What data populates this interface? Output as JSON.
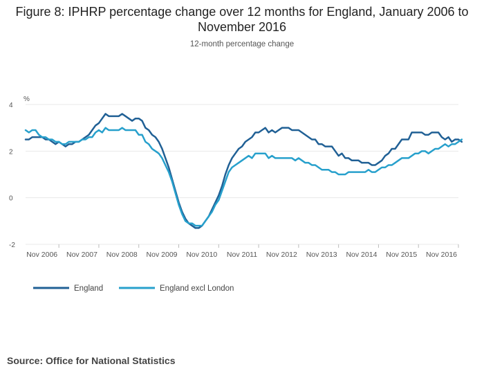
{
  "chart_data": {
    "type": "line",
    "title": "Figure 8: IPHRP percentage change over 12 months for England, January 2006 to November 2016",
    "subtitle": "12-month percentage change",
    "ylabel": "%",
    "xlabel": "",
    "ylim": [
      -2,
      4
    ],
    "yticks": [
      4,
      2,
      0,
      -2
    ],
    "xlim": [
      0,
      130
    ],
    "xticks": [
      {
        "label": "Nov 2006",
        "pos": 10
      },
      {
        "label": "Nov 2007",
        "pos": 22
      },
      {
        "label": "Nov 2008",
        "pos": 34
      },
      {
        "label": "Nov 2009",
        "pos": 46
      },
      {
        "label": "Nov 2010",
        "pos": 58
      },
      {
        "label": "Nov 2011",
        "pos": 70
      },
      {
        "label": "Nov 2012",
        "pos": 82
      },
      {
        "label": "Nov 2013",
        "pos": 94
      },
      {
        "label": "Nov 2014",
        "pos": 106
      },
      {
        "label": "Nov 2015",
        "pos": 118
      },
      {
        "label": "Nov 2016",
        "pos": 130
      }
    ],
    "grid": true,
    "legend_position": "bottom-left",
    "series": [
      {
        "name": "England",
        "color": "#206095",
        "values": [
          2.5,
          2.5,
          2.6,
          2.6,
          2.6,
          2.6,
          2.5,
          2.5,
          2.4,
          2.3,
          2.4,
          2.3,
          2.2,
          2.3,
          2.3,
          2.4,
          2.4,
          2.5,
          2.6,
          2.7,
          2.9,
          3.1,
          3.2,
          3.4,
          3.6,
          3.5,
          3.5,
          3.5,
          3.5,
          3.6,
          3.5,
          3.4,
          3.3,
          3.4,
          3.4,
          3.3,
          3.0,
          2.9,
          2.7,
          2.6,
          2.4,
          2.1,
          1.7,
          1.3,
          0.8,
          0.3,
          -0.2,
          -0.6,
          -0.9,
          -1.1,
          -1.2,
          -1.3,
          -1.3,
          -1.2,
          -1.0,
          -0.8,
          -0.5,
          -0.2,
          0.1,
          0.5,
          1.0,
          1.4,
          1.7,
          1.9,
          2.1,
          2.2,
          2.4,
          2.5,
          2.6,
          2.8,
          2.8,
          2.9,
          3.0,
          2.8,
          2.9,
          2.8,
          2.9,
          3.0,
          3.0,
          3.0,
          2.9,
          2.9,
          2.9,
          2.8,
          2.7,
          2.6,
          2.5,
          2.5,
          2.3,
          2.3,
          2.2,
          2.2,
          2.2,
          2.0,
          1.8,
          1.9,
          1.7,
          1.7,
          1.6,
          1.6,
          1.6,
          1.5,
          1.5,
          1.5,
          1.4,
          1.4,
          1.5,
          1.6,
          1.8,
          1.9,
          2.1,
          2.1,
          2.3,
          2.5,
          2.5,
          2.5,
          2.8,
          2.8,
          2.8,
          2.8,
          2.7,
          2.7,
          2.8,
          2.8,
          2.8,
          2.6,
          2.5,
          2.6,
          2.4,
          2.5,
          2.5,
          2.4
        ]
      },
      {
        "name": "England excl London",
        "color": "#27a0cc",
        "values": [
          2.9,
          2.8,
          2.9,
          2.9,
          2.7,
          2.6,
          2.6,
          2.5,
          2.5,
          2.4,
          2.4,
          2.3,
          2.3,
          2.4,
          2.4,
          2.4,
          2.4,
          2.5,
          2.5,
          2.6,
          2.6,
          2.8,
          2.9,
          2.8,
          3.0,
          2.9,
          2.9,
          2.9,
          2.9,
          3.0,
          2.9,
          2.9,
          2.9,
          2.9,
          2.7,
          2.7,
          2.4,
          2.3,
          2.1,
          2.0,
          1.9,
          1.7,
          1.4,
          1.1,
          0.7,
          0.2,
          -0.3,
          -0.7,
          -1.0,
          -1.1,
          -1.1,
          -1.2,
          -1.2,
          -1.2,
          -1.0,
          -0.8,
          -0.6,
          -0.3,
          -0.1,
          0.3,
          0.7,
          1.1,
          1.3,
          1.4,
          1.5,
          1.6,
          1.7,
          1.8,
          1.7,
          1.9,
          1.9,
          1.9,
          1.9,
          1.7,
          1.8,
          1.7,
          1.7,
          1.7,
          1.7,
          1.7,
          1.7,
          1.6,
          1.7,
          1.6,
          1.5,
          1.5,
          1.4,
          1.4,
          1.3,
          1.2,
          1.2,
          1.2,
          1.1,
          1.1,
          1.0,
          1.0,
          1.0,
          1.1,
          1.1,
          1.1,
          1.1,
          1.1,
          1.1,
          1.2,
          1.1,
          1.1,
          1.2,
          1.3,
          1.3,
          1.4,
          1.4,
          1.5,
          1.6,
          1.7,
          1.7,
          1.7,
          1.8,
          1.9,
          1.9,
          2.0,
          2.0,
          1.9,
          2.0,
          2.1,
          2.1,
          2.2,
          2.3,
          2.2,
          2.3,
          2.3,
          2.4,
          2.5
        ]
      }
    ]
  },
  "source": "Source: Office for National Statistics"
}
